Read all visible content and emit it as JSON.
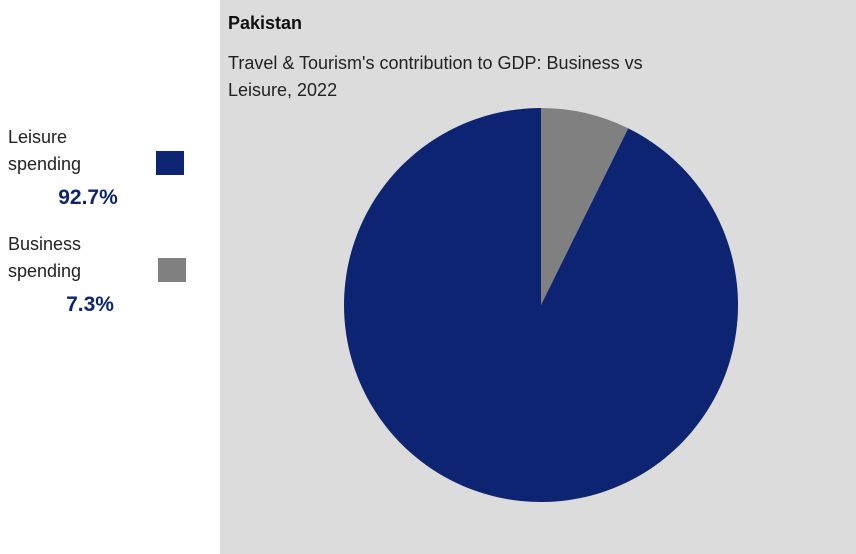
{
  "chart_data": {
    "type": "pie",
    "title": "Pakistan",
    "subtitle": "Travel & Tourism's contribution to GDP: Business vs Leisure, 2022",
    "series": [
      {
        "name": "Business spending",
        "value": 7.3,
        "value_label": "7.3%",
        "color": "#808080"
      },
      {
        "name": "Leisure spending",
        "value": 92.7,
        "value_label": "92.7%",
        "color": "#0d2472"
      }
    ],
    "legend": [
      {
        "label": "Leisure spending",
        "value_label": "92.7%",
        "color": "#0d2472"
      },
      {
        "label": "Business spending",
        "value_label": "7.3%",
        "color": "#808080"
      }
    ],
    "legend_placement": "left"
  }
}
